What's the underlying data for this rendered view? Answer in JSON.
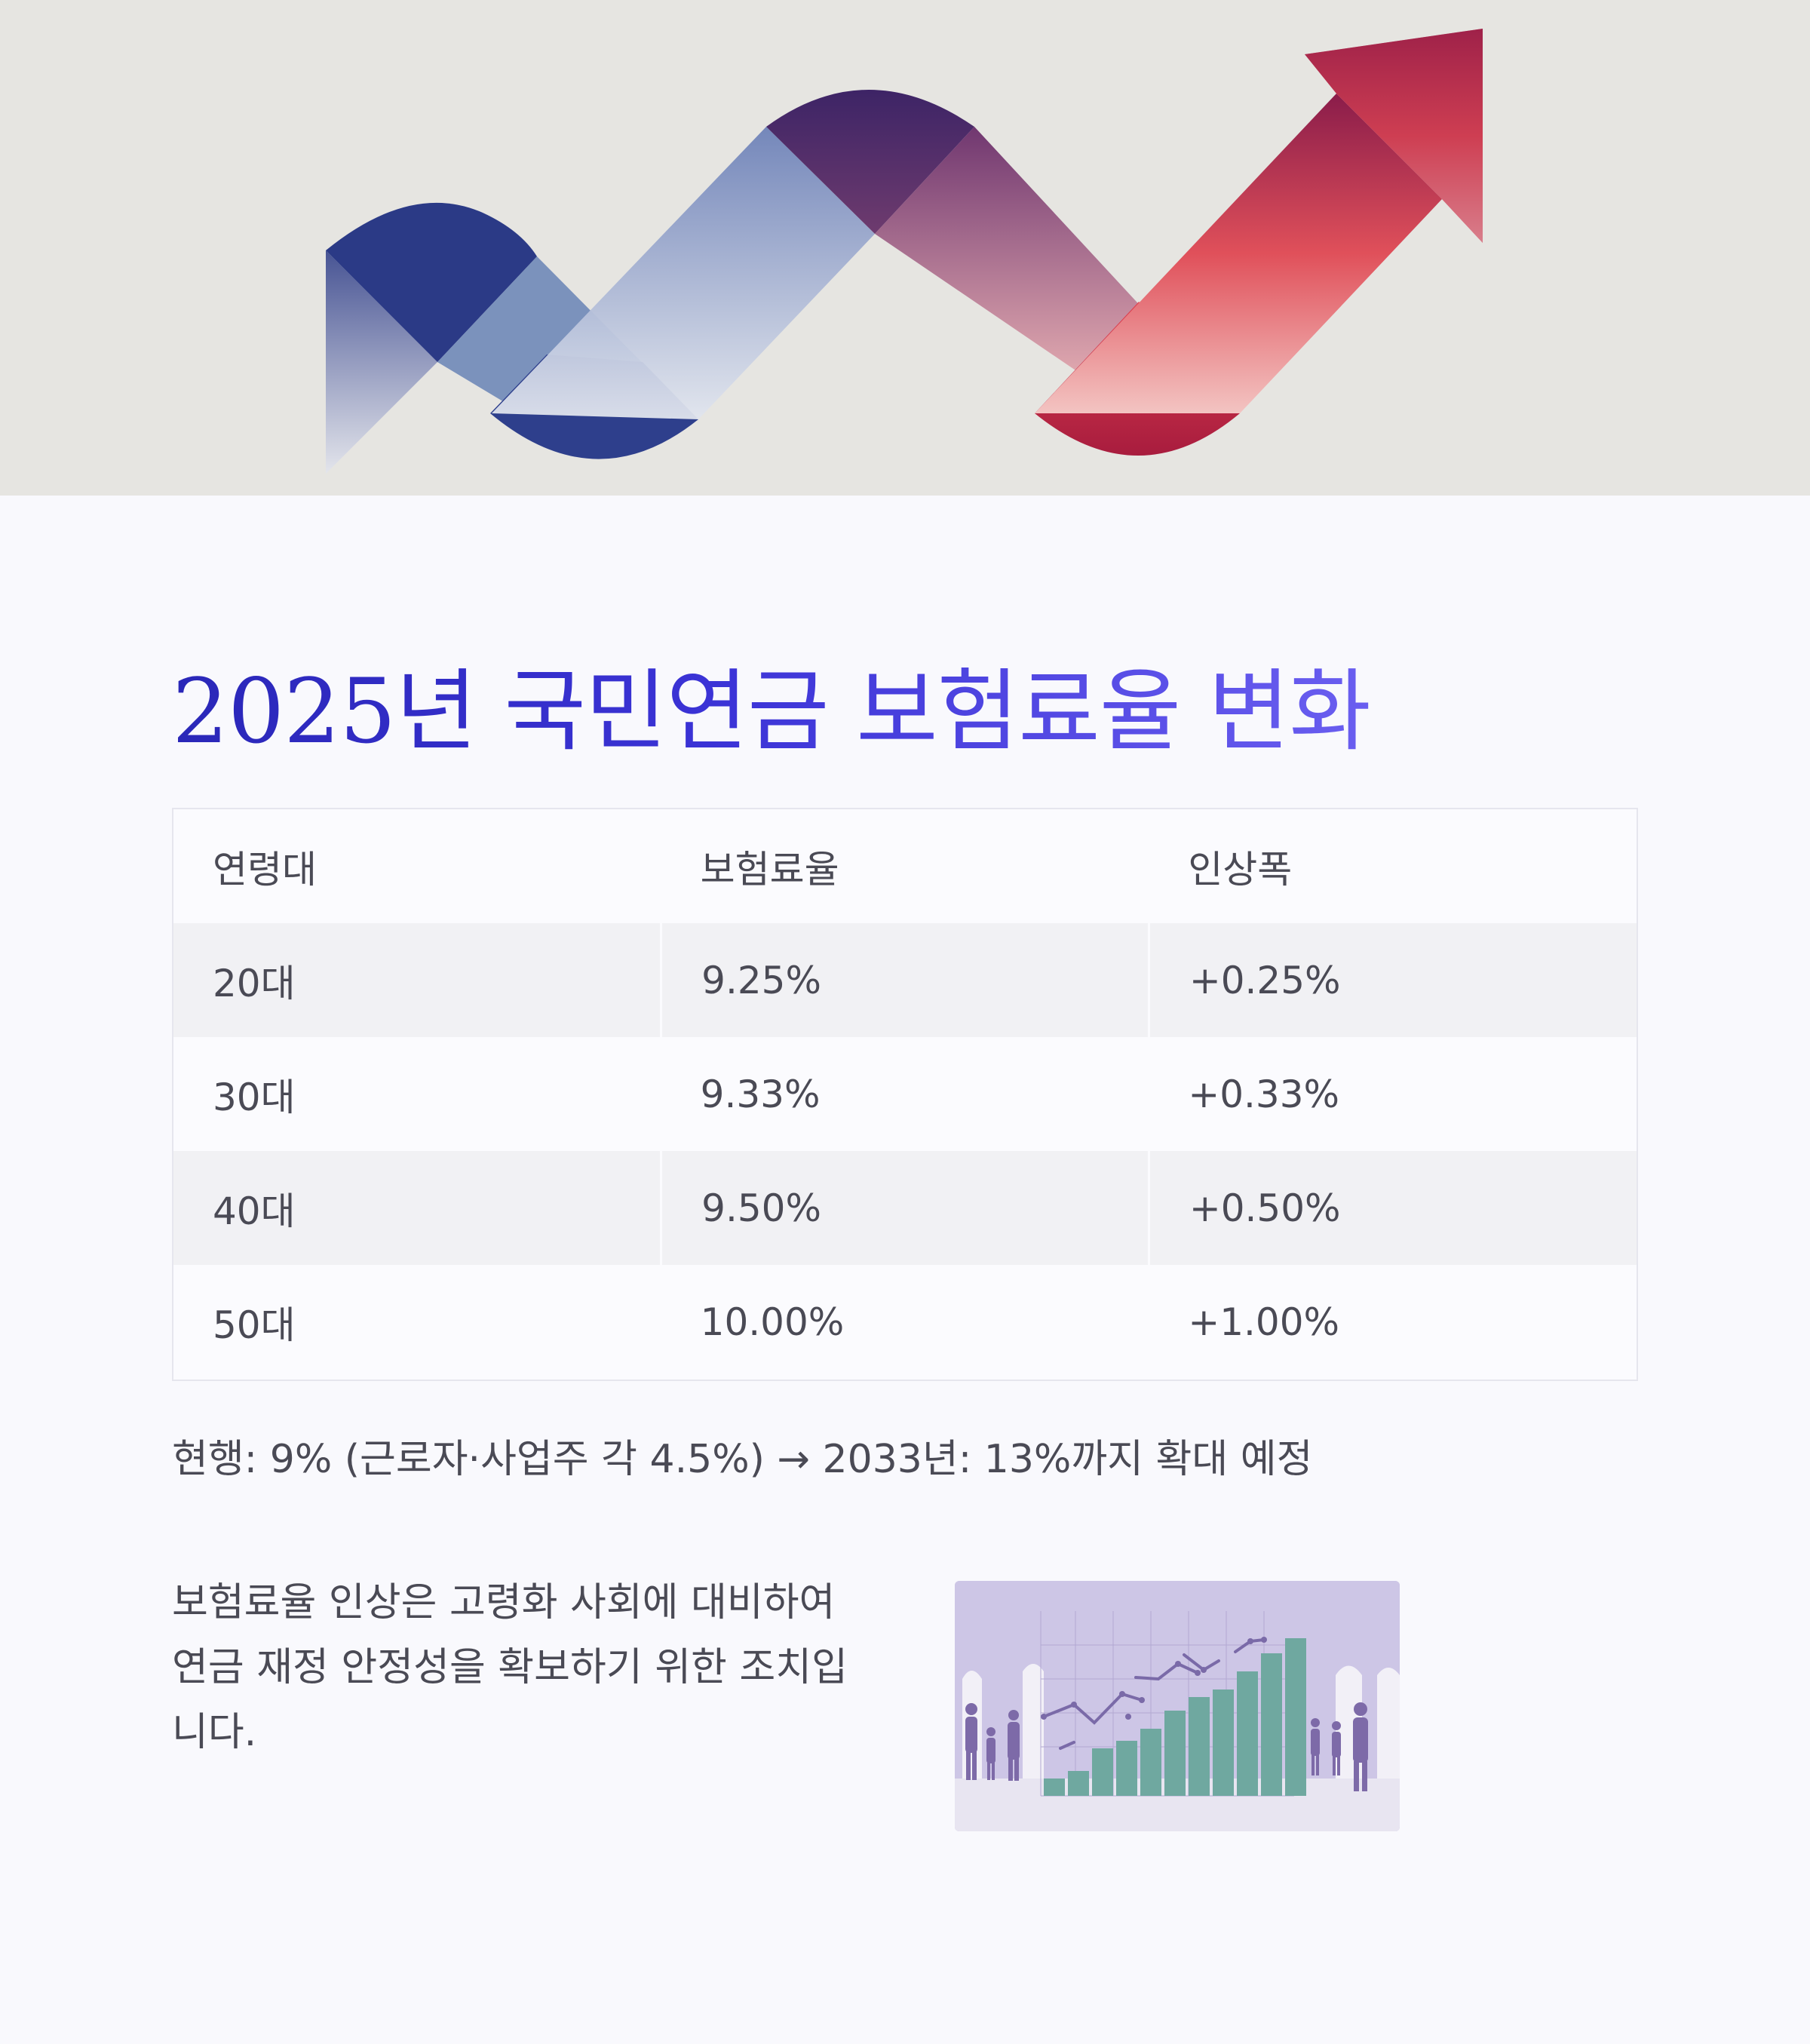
{
  "header": {
    "title": "2025년 국민연금 보험료율 변화"
  },
  "table": {
    "headers": [
      "연령대",
      "보험료율",
      "인상폭"
    ],
    "rows": [
      [
        "20대",
        "9.25%",
        "+0.25%"
      ],
      [
        "30대",
        "9.33%",
        "+0.33%"
      ],
      [
        "40대",
        "9.50%",
        "+0.50%"
      ],
      [
        "50대",
        "10.00%",
        "+1.00%"
      ]
    ]
  },
  "note": "현행: 9% (근로자·사업주 각 4.5%) → 2033년: 13%까지 확대 예정",
  "description": "보험료율 인상은 고령화 사회에 대비하여 연금 재정 안정성을 확보하기 위한 조치입니다.",
  "colors": {
    "title_gradient_start": "#2a27b8",
    "title_gradient_end": "#6a5ef0",
    "arrow_blue": "#2b3a86",
    "arrow_red": "#d63a4a",
    "chart_bars": "#6fa8a0",
    "chart_bg": "#cdc6e6"
  },
  "icons": {
    "hero": "rising-zigzag-arrow-illustration",
    "thumbnail": "growth-bar-chart-with-people-illustration"
  }
}
